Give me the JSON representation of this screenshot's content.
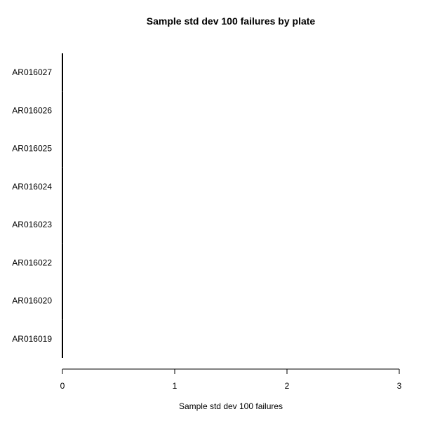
{
  "chart_data": {
    "type": "bar",
    "orientation": "horizontal",
    "title": "Sample std dev 100 failures by plate",
    "xlabel": "Sample std dev 100 failures",
    "ylabel": "",
    "categories": [
      "AR016019",
      "AR016020",
      "AR016022",
      "AR016023",
      "AR016024",
      "AR016025",
      "AR016026",
      "AR016027"
    ],
    "values": [
      0,
      0,
      0,
      0,
      0,
      0,
      0,
      0
    ],
    "xlim": [
      0,
      3
    ],
    "xticks": [
      "0",
      "1",
      "2",
      "3"
    ],
    "grid": false,
    "legend": "none",
    "colors": {
      "axis": "#000000",
      "bar": "#000000"
    }
  }
}
